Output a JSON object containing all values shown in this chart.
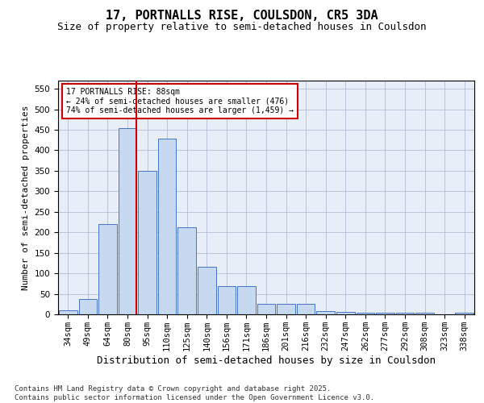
{
  "title": "17, PORTNALLS RISE, COULSDON, CR5 3DA",
  "subtitle": "Size of property relative to semi-detached houses in Coulsdon",
  "xlabel": "Distribution of semi-detached houses by size in Coulsdon",
  "ylabel": "Number of semi-detached properties",
  "categories": [
    "34sqm",
    "49sqm",
    "64sqm",
    "80sqm",
    "95sqm",
    "110sqm",
    "125sqm",
    "140sqm",
    "156sqm",
    "171sqm",
    "186sqm",
    "201sqm",
    "216sqm",
    "232sqm",
    "247sqm",
    "262sqm",
    "277sqm",
    "292sqm",
    "308sqm",
    "323sqm",
    "338sqm"
  ],
  "values": [
    10,
    38,
    220,
    455,
    350,
    428,
    213,
    115,
    68,
    68,
    25,
    25,
    25,
    8,
    5,
    3,
    3,
    3,
    3,
    0,
    4
  ],
  "bar_color": "#c6d9f0",
  "bar_edge_color": "#4472c4",
  "vline_x_index": 3.43,
  "vline_color": "#cc0000",
  "annotation_text": "17 PORTNALLS RISE: 88sqm\n← 24% of semi-detached houses are smaller (476)\n74% of semi-detached houses are larger (1,459) →",
  "annotation_box_color": "#ffffff",
  "annotation_box_edge": "#cc0000",
  "ylim": [
    0,
    570
  ],
  "yticks": [
    0,
    50,
    100,
    150,
    200,
    250,
    300,
    350,
    400,
    450,
    500,
    550
  ],
  "background_color": "#e8eef8",
  "footer": "Contains HM Land Registry data © Crown copyright and database right 2025.\nContains public sector information licensed under the Open Government Licence v3.0.",
  "title_fontsize": 11,
  "subtitle_fontsize": 9,
  "xlabel_fontsize": 9,
  "ylabel_fontsize": 8,
  "tick_fontsize": 7.5,
  "footer_fontsize": 6.5
}
